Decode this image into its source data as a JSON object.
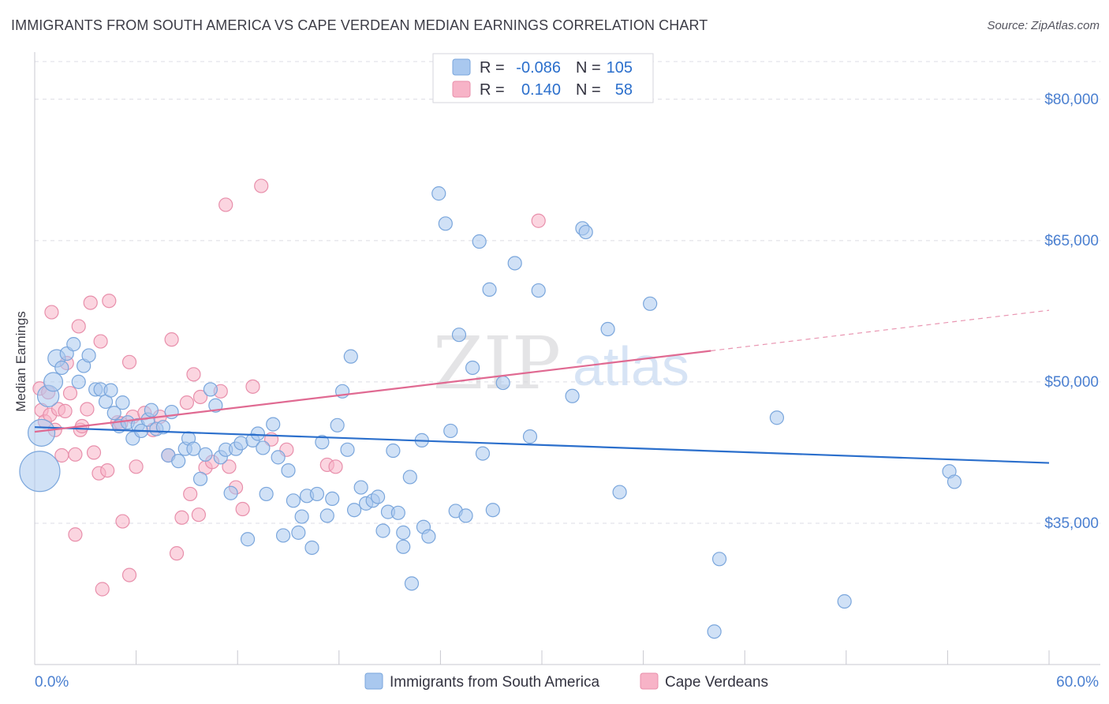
{
  "title": "IMMIGRANTS FROM SOUTH AMERICA VS CAPE VERDEAN MEDIAN EARNINGS CORRELATION CHART",
  "source": "Source: ZipAtlas.com",
  "watermark": {
    "zip": "ZIP",
    "atlas": "atlas"
  },
  "legend_box": {
    "rows": [
      {
        "r_label": "R =",
        "r_value": "-0.086",
        "n_label": "N =",
        "n_value": "105",
        "color": "#a9c8ef"
      },
      {
        "r_label": "R =",
        "r_value": "0.140",
        "n_label": "N =",
        "n_value": "58",
        "color": "#f7b3c7"
      }
    ]
  },
  "bottom_legend": [
    {
      "label": "Immigrants from South America",
      "color": "#a9c8ef"
    },
    {
      "label": "Cape Verdeans",
      "color": "#f7b3c7"
    }
  ],
  "colors": {
    "blue_fill": "#a9c8ef",
    "blue_stroke": "#7aa6dc",
    "blue_line": "#2b6fcc",
    "pink_fill": "#f7b3c7",
    "pink_stroke": "#e88fab",
    "pink_line": "#e06a92",
    "axis_text": "#4a7fd0",
    "grid": "#dcdce4"
  },
  "chart_data": {
    "type": "scatter",
    "title": "IMMIGRANTS FROM SOUTH AMERICA VS CAPE VERDEAN MEDIAN EARNINGS CORRELATION CHART",
    "xlabel": "",
    "ylabel": "Median Earnings",
    "xlim": [
      0,
      60
    ],
    "ylim": [
      20000,
      84000
    ],
    "x_tick_labels": [
      "0.0%",
      "60.0%"
    ],
    "y_ticks": [
      {
        "value": 35000,
        "label": "$35,000"
      },
      {
        "value": 50000,
        "label": "$50,000"
      },
      {
        "value": 65000,
        "label": "$65,000"
      },
      {
        "value": 80000,
        "label": "$80,000"
      }
    ],
    "grid": true,
    "legend_position": "top-center",
    "series": [
      {
        "name": "Immigrants from South America",
        "r": -0.086,
        "n": 105,
        "trend": {
          "x0": 0,
          "y0": 45200,
          "x1": 60,
          "y1": 41400,
          "dashed_from": null
        },
        "points": [
          [
            0.3,
            40500,
            3
          ],
          [
            0.4,
            44600,
            2
          ],
          [
            0.8,
            48500,
            1.6
          ],
          [
            1.1,
            50000,
            1.4
          ],
          [
            1.3,
            52500,
            1.3
          ],
          [
            1.6,
            51500,
            1
          ],
          [
            1.9,
            53000,
            1
          ],
          [
            2.3,
            54000,
            1
          ],
          [
            2.6,
            50000,
            1
          ],
          [
            2.9,
            51700,
            1
          ],
          [
            3.2,
            52800,
            1
          ],
          [
            3.6,
            49200,
            1
          ],
          [
            3.9,
            49200,
            1
          ],
          [
            4.2,
            47900,
            1
          ],
          [
            4.5,
            49100,
            1
          ],
          [
            4.7,
            46700,
            1
          ],
          [
            5.0,
            45300,
            1
          ],
          [
            5.2,
            47800,
            1
          ],
          [
            5.5,
            45700,
            1
          ],
          [
            5.8,
            44000,
            1
          ],
          [
            6.1,
            45400,
            1
          ],
          [
            6.3,
            44800,
            1
          ],
          [
            6.7,
            46000,
            1
          ],
          [
            6.9,
            47000,
            1
          ],
          [
            7.2,
            45000,
            1
          ],
          [
            7.6,
            45200,
            1
          ],
          [
            7.9,
            42200,
            1
          ],
          [
            8.1,
            46800,
            1
          ],
          [
            8.5,
            41600,
            1
          ],
          [
            8.9,
            42900,
            1
          ],
          [
            9.1,
            44000,
            1
          ],
          [
            9.4,
            42900,
            1
          ],
          [
            9.8,
            39700,
            1
          ],
          [
            10.1,
            42300,
            1
          ],
          [
            10.4,
            49200,
            1
          ],
          [
            10.7,
            47500,
            1
          ],
          [
            11.0,
            42000,
            1
          ],
          [
            11.3,
            42800,
            1
          ],
          [
            11.6,
            38200,
            1
          ],
          [
            11.9,
            42900,
            1
          ],
          [
            12.2,
            43500,
            1
          ],
          [
            12.6,
            33300,
            1
          ],
          [
            12.9,
            43800,
            1
          ],
          [
            13.2,
            44500,
            1
          ],
          [
            13.5,
            43000,
            1
          ],
          [
            13.7,
            38100,
            1
          ],
          [
            14.1,
            45500,
            1
          ],
          [
            14.4,
            42000,
            1
          ],
          [
            14.7,
            33700,
            1
          ],
          [
            15.0,
            40600,
            1
          ],
          [
            15.3,
            37400,
            1
          ],
          [
            15.6,
            34000,
            1
          ],
          [
            15.8,
            35700,
            1
          ],
          [
            16.1,
            37900,
            1
          ],
          [
            16.4,
            32400,
            1
          ],
          [
            16.7,
            38100,
            1
          ],
          [
            17.0,
            43600,
            1
          ],
          [
            17.3,
            35800,
            1
          ],
          [
            17.6,
            37600,
            1
          ],
          [
            17.9,
            45400,
            1
          ],
          [
            18.2,
            49000,
            1
          ],
          [
            18.5,
            42800,
            1
          ],
          [
            18.7,
            52700,
            1
          ],
          [
            18.9,
            36400,
            1
          ],
          [
            19.3,
            38800,
            1
          ],
          [
            19.6,
            37100,
            1
          ],
          [
            20.0,
            37400,
            1
          ],
          [
            20.3,
            37800,
            1
          ],
          [
            20.6,
            34200,
            1
          ],
          [
            20.9,
            36200,
            1
          ],
          [
            21.2,
            42700,
            1
          ],
          [
            21.5,
            36100,
            1
          ],
          [
            21.8,
            34000,
            1
          ],
          [
            21.8,
            32500,
            1
          ],
          [
            22.2,
            39900,
            1
          ],
          [
            22.3,
            28600,
            1
          ],
          [
            22.9,
            43800,
            1
          ],
          [
            23.0,
            34600,
            1
          ],
          [
            23.3,
            33600,
            1
          ],
          [
            23.9,
            70000,
            1
          ],
          [
            24.3,
            66800,
            1
          ],
          [
            24.6,
            44800,
            1
          ],
          [
            24.9,
            36300,
            1
          ],
          [
            25.1,
            55000,
            1
          ],
          [
            25.5,
            35800,
            1
          ],
          [
            25.9,
            51500,
            1
          ],
          [
            26.3,
            64900,
            1
          ],
          [
            26.5,
            42400,
            1
          ],
          [
            26.9,
            59800,
            1
          ],
          [
            27.1,
            36400,
            1
          ],
          [
            27.7,
            49900,
            1
          ],
          [
            28.4,
            62600,
            1
          ],
          [
            29.3,
            44200,
            1
          ],
          [
            29.8,
            59700,
            1
          ],
          [
            31.8,
            48500,
            1
          ],
          [
            32.4,
            66300,
            1
          ],
          [
            32.6,
            65900,
            1
          ],
          [
            33.9,
            55600,
            1
          ],
          [
            34.6,
            38300,
            1
          ],
          [
            36.4,
            58300,
            1
          ],
          [
            40.2,
            23500,
            1
          ],
          [
            40.5,
            31200,
            1
          ],
          [
            43.9,
            46200,
            1
          ],
          [
            47.9,
            26700,
            1
          ],
          [
            54.1,
            40500,
            1
          ],
          [
            54.4,
            39400,
            1
          ]
        ]
      },
      {
        "name": "Cape Verdeans",
        "r": 0.14,
        "n": 58,
        "trend": {
          "x0": 0,
          "y0": 44700,
          "x1": 60,
          "y1": 57600,
          "dashed_from": 40
        },
        "points": [
          [
            0.3,
            49300,
            1
          ],
          [
            0.4,
            47000,
            1
          ],
          [
            0.6,
            45800,
            1
          ],
          [
            0.8,
            48900,
            1
          ],
          [
            0.9,
            46500,
            1
          ],
          [
            1.0,
            57400,
            1
          ],
          [
            1.2,
            44900,
            1
          ],
          [
            1.4,
            47100,
            1
          ],
          [
            1.6,
            42200,
            1
          ],
          [
            1.8,
            46900,
            1
          ],
          [
            1.9,
            52000,
            1
          ],
          [
            2.1,
            48800,
            1
          ],
          [
            2.4,
            33800,
            1
          ],
          [
            2.4,
            42300,
            1
          ],
          [
            2.6,
            55900,
            1
          ],
          [
            2.7,
            44900,
            1
          ],
          [
            2.8,
            45300,
            1
          ],
          [
            3.1,
            47100,
            1
          ],
          [
            3.3,
            58400,
            1
          ],
          [
            3.5,
            42500,
            1
          ],
          [
            3.8,
            40300,
            1
          ],
          [
            3.9,
            54300,
            1
          ],
          [
            4.0,
            28000,
            1
          ],
          [
            4.3,
            40600,
            1
          ],
          [
            4.4,
            58600,
            1
          ],
          [
            4.9,
            45700,
            1
          ],
          [
            5.1,
            45600,
            1
          ],
          [
            5.2,
            35200,
            1
          ],
          [
            5.6,
            52100,
            1
          ],
          [
            5.8,
            46300,
            1
          ],
          [
            5.6,
            29500,
            1
          ],
          [
            6.0,
            41000,
            1
          ],
          [
            6.5,
            46700,
            1
          ],
          [
            7.0,
            44900,
            1
          ],
          [
            7.4,
            46300,
            1
          ],
          [
            7.9,
            42200,
            1
          ],
          [
            8.1,
            54500,
            1
          ],
          [
            8.4,
            31800,
            1
          ],
          [
            8.7,
            35600,
            1
          ],
          [
            9.0,
            47800,
            1
          ],
          [
            9.2,
            38100,
            1
          ],
          [
            9.4,
            50800,
            1
          ],
          [
            9.7,
            35900,
            1
          ],
          [
            9.8,
            48400,
            1
          ],
          [
            10.1,
            40900,
            1
          ],
          [
            10.5,
            41500,
            1
          ],
          [
            11.0,
            49000,
            1
          ],
          [
            11.3,
            68800,
            1
          ],
          [
            11.5,
            41000,
            1
          ],
          [
            11.9,
            38800,
            1
          ],
          [
            12.3,
            36500,
            1
          ],
          [
            12.9,
            49500,
            1
          ],
          [
            13.4,
            70800,
            1
          ],
          [
            14.0,
            43900,
            1
          ],
          [
            14.9,
            42800,
            1
          ],
          [
            17.3,
            41200,
            1
          ],
          [
            17.8,
            41000,
            1
          ],
          [
            29.8,
            67100,
            1
          ]
        ]
      }
    ]
  }
}
